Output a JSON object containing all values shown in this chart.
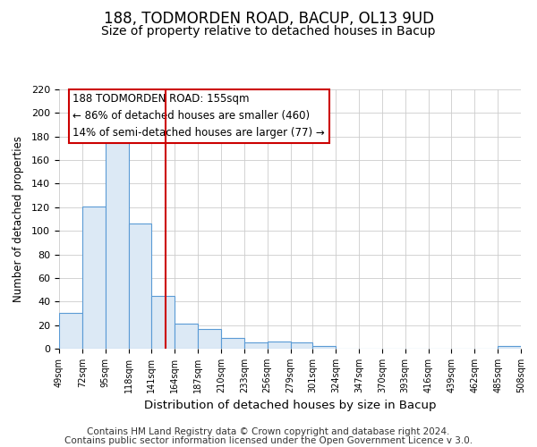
{
  "title": "188, TODMORDEN ROAD, BACUP, OL13 9UD",
  "subtitle": "Size of property relative to detached houses in Bacup",
  "xlabel": "Distribution of detached houses by size in Bacup",
  "ylabel": "Number of detached properties",
  "bin_edges": [
    49,
    72,
    95,
    118,
    141,
    164,
    187,
    210,
    233,
    256,
    279,
    301,
    324,
    347,
    370,
    393,
    416,
    439,
    462,
    485,
    508
  ],
  "bin_heights": [
    30,
    121,
    175,
    106,
    45,
    21,
    17,
    9,
    5,
    6,
    5,
    2,
    0,
    0,
    0,
    0,
    0,
    0,
    0,
    2
  ],
  "bar_facecolor": "#dce9f5",
  "bar_edgecolor": "#5b9bd5",
  "vline_x": 155,
  "vline_color": "#cc0000",
  "annotation_line1": "188 TODMORDEN ROAD: 155sqm",
  "annotation_line2": "← 86% of detached houses are smaller (460)",
  "annotation_line3": "14% of semi-detached houses are larger (77) →",
  "annotation_box_facecolor": "white",
  "annotation_box_edgecolor": "#cc0000",
  "ylim": [
    0,
    220
  ],
  "xlim": [
    49,
    508
  ],
  "tick_labels": [
    "49sqm",
    "72sqm",
    "95sqm",
    "118sqm",
    "141sqm",
    "164sqm",
    "187sqm",
    "210sqm",
    "233sqm",
    "256sqm",
    "279sqm",
    "301sqm",
    "324sqm",
    "347sqm",
    "370sqm",
    "393sqm",
    "416sqm",
    "439sqm",
    "462sqm",
    "485sqm",
    "508sqm"
  ],
  "yticks": [
    0,
    20,
    40,
    60,
    80,
    100,
    120,
    140,
    160,
    180,
    200,
    220
  ],
  "grid_color": "#cccccc",
  "background_color": "#ffffff",
  "footer_line1": "Contains HM Land Registry data © Crown copyright and database right 2024.",
  "footer_line2": "Contains public sector information licensed under the Open Government Licence v 3.0.",
  "title_fontsize": 12,
  "subtitle_fontsize": 10,
  "annotation_fontsize": 8.5,
  "xlabel_fontsize": 9.5,
  "ylabel_fontsize": 8.5,
  "footer_fontsize": 7.5,
  "xtick_fontsize": 7,
  "ytick_fontsize": 8
}
